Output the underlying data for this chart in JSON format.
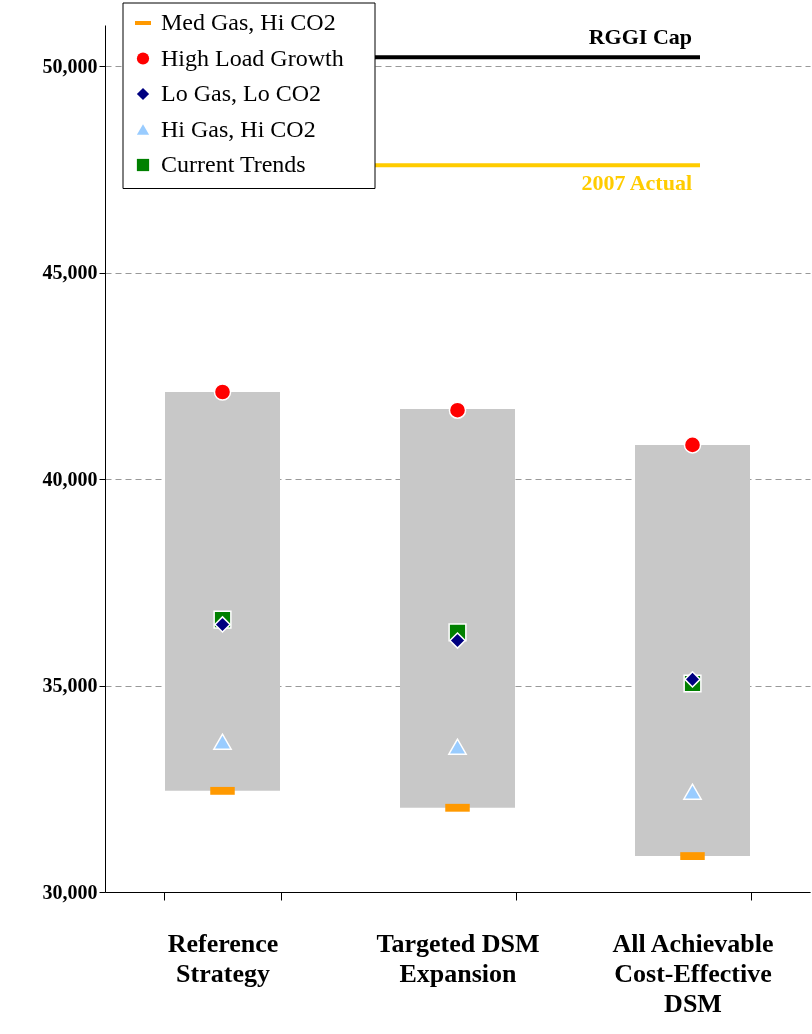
{
  "chart_data": {
    "type": "bar",
    "categories": [
      "Reference Strategy",
      "Targeted DSM Expansion",
      "All Achievable Cost-Effective DSM"
    ],
    "base": [
      32450,
      32040,
      30870
    ],
    "values": [
      9660,
      9660,
      9960
    ],
    "colors": [
      "#c8c8c8",
      "#c8c8c8",
      "#c8c8c8"
    ],
    "series": [
      {
        "name": "Med Gas, Hi CO2",
        "type": "scatter",
        "color": "#ff9900",
        "values": [
          32450,
          32040,
          30870
        ]
      },
      {
        "name": "High Load Growth",
        "type": "scatter",
        "marker": "circle",
        "color": "#ff0000",
        "values": [
          42110,
          41670,
          40830
        ]
      },
      {
        "name": "Lo Gas, Lo CO2",
        "type": "scatter",
        "marker": "diamond",
        "color": "#000080",
        "values": [
          36480,
          36090,
          35150
        ]
      },
      {
        "name": "Hi Gas, Hi CO2",
        "type": "scatter",
        "marker": "triangle",
        "color": "#99ccff",
        "values": [
          33640,
          33520,
          32430
        ]
      },
      {
        "name": "Current Trends",
        "type": "scatter",
        "marker": "square",
        "color": "#008000",
        "values": [
          36600,
          36290,
          35050
        ]
      }
    ],
    "ref_lines": [
      {
        "axis": "y",
        "value": 50220,
        "label": "RGGI Cap",
        "color": "#000000"
      },
      {
        "axis": "y",
        "value": 47600,
        "label": "2007 Actual",
        "color": "#ffcc00"
      }
    ],
    "ylim": [
      30000,
      51000
    ],
    "yticks": [
      {
        "value": 30000,
        "label": "30,000"
      },
      {
        "value": 35000,
        "label": "35,000"
      },
      {
        "value": 40000,
        "label": "40,000"
      },
      {
        "value": 45000,
        "label": "45,000"
      },
      {
        "value": 50000,
        "label": "50,000"
      }
    ],
    "grid": "y",
    "legend": "top left"
  }
}
